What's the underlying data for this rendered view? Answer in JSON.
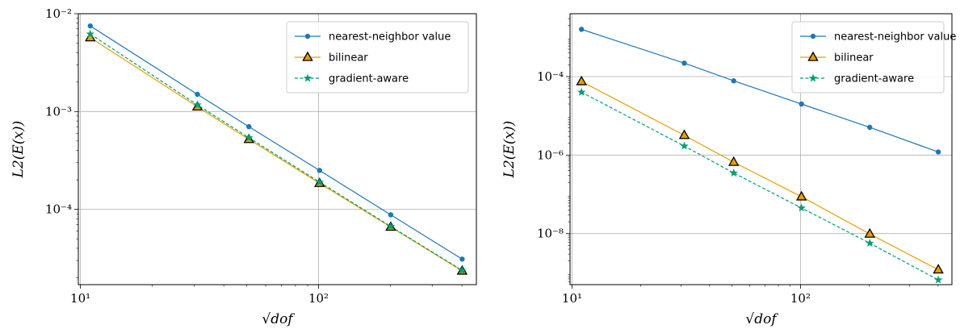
{
  "chart_data": [
    {
      "type": "line",
      "xscale": "log",
      "yscale": "log",
      "xlabel": "√dof",
      "ylabel": "L2(E(x))",
      "xlim": [
        9.8,
        460
      ],
      "ylim": [
        1.7e-05,
        0.01
      ],
      "xticks": [
        {
          "value": 10,
          "label": "10¹"
        },
        {
          "value": 100,
          "label": "10²"
        }
      ],
      "yticks": [
        {
          "value": 0.0001,
          "label": "10⁻⁴"
        },
        {
          "value": 0.001,
          "label": "10⁻³"
        },
        {
          "value": 0.01,
          "label": "10⁻²"
        }
      ],
      "grid": true,
      "legend": "top-right",
      "x": [
        11,
        31,
        51,
        101,
        201,
        401
      ],
      "series": [
        {
          "name": "nearest-neighbor value",
          "color": "#1f77b4",
          "marker": "circle",
          "dash": "solid",
          "values": [
            0.0075,
            0.0015,
            0.0007,
            0.00025,
            8.8e-05,
            3.1e-05
          ]
        },
        {
          "name": "bilinear",
          "color": "#e69f00",
          "marker": "triangle",
          "dash": "solid",
          "values": [
            0.0057,
            0.00112,
            0.00052,
            0.000185,
            6.6e-05,
            2.35e-05
          ]
        },
        {
          "name": "gradient-aware",
          "color": "#009e73",
          "marker": "star",
          "dash": "dashed",
          "values": [
            0.0062,
            0.00117,
            0.00054,
            0.00019,
            6.7e-05,
            2.38e-05
          ]
        }
      ]
    },
    {
      "type": "line",
      "xscale": "log",
      "yscale": "log",
      "xlabel": "√dof",
      "ylabel": "L2(E(x))",
      "xlim": [
        9.8,
        460
      ],
      "ylim": [
        5e-10,
        0.004
      ],
      "xticks": [
        {
          "value": 10,
          "label": "10¹"
        },
        {
          "value": 100,
          "label": "10²"
        }
      ],
      "yticks": [
        {
          "value": 1e-08,
          "label": "10⁻⁸"
        },
        {
          "value": 1e-06,
          "label": "10⁻⁶"
        },
        {
          "value": 0.0001,
          "label": "10⁻⁴"
        }
      ],
      "grid": true,
      "legend": "top-right",
      "x": [
        11,
        31,
        51,
        101,
        201,
        401
      ],
      "series": [
        {
          "name": "nearest-neighbor value",
          "color": "#1f77b4",
          "marker": "circle",
          "dash": "solid",
          "values": [
            0.0016,
            0.00022,
            7.8e-05,
            2e-05,
            5.1e-06,
            1.2e-06
          ]
        },
        {
          "name": "bilinear",
          "color": "#e69f00",
          "marker": "triangle",
          "dash": "solid",
          "values": [
            7.5e-05,
            3.2e-06,
            6.6e-07,
            8.7e-08,
            9.8e-09,
            1.2e-09
          ]
        },
        {
          "name": "gradient-aware",
          "color": "#009e73",
          "marker": "star",
          "dash": "dashed",
          "values": [
            4e-05,
            1.7e-06,
            3.5e-07,
            4.5e-08,
            5.7e-09,
            6.6e-10
          ]
        }
      ]
    }
  ]
}
